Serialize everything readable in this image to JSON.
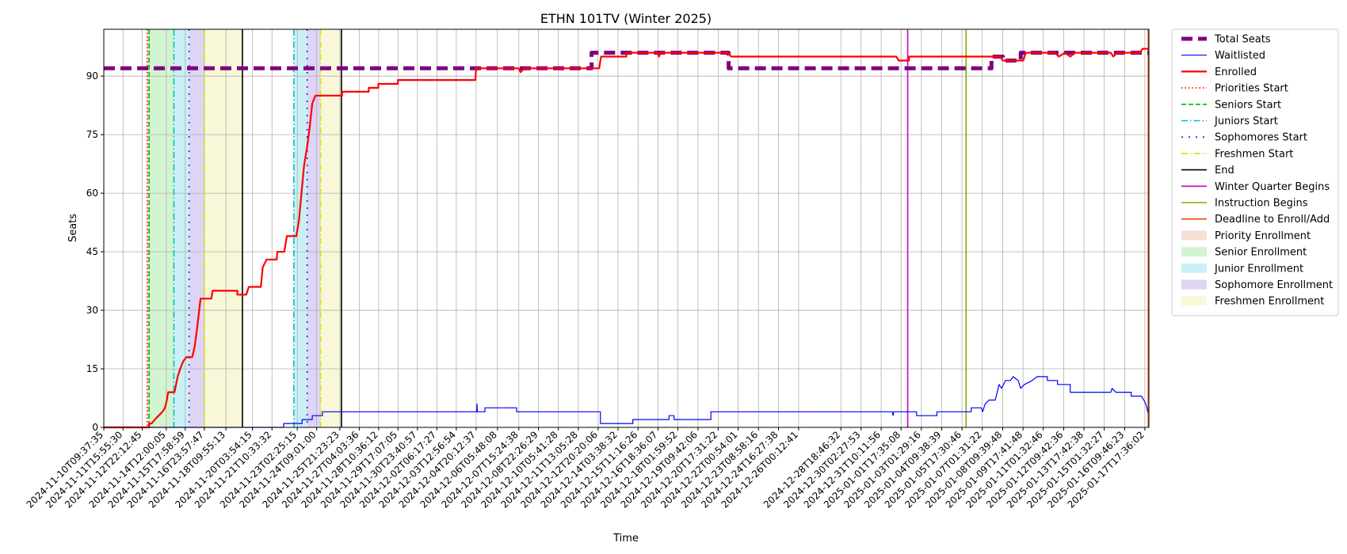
{
  "chart_data": {
    "type": "line",
    "title": "ETHN 101TV (Winter 2025)",
    "xlabel": "Time",
    "ylabel": "Seats",
    "ylim": [
      0,
      102
    ],
    "yticks": [
      0,
      15,
      30,
      45,
      60,
      75,
      90
    ],
    "grid": true,
    "legend_position": "outside-right",
    "x_start": "2024-11-10T09:37:35",
    "x_end": "2025-01-18T00:00:00",
    "xticks": [
      "2024-11-10T09:37:35",
      "2024-11-11T15:55:30",
      "2024-11-12T22:12:45",
      "2024-11-14T12:00:05",
      "2024-11-15T17:58:59",
      "2024-11-16T23:57:47",
      "2024-11-18T09:55:13",
      "2024-11-20T03:54:15",
      "2024-11-21T10:33:32",
      "2024-11-23T02:25:15",
      "2024-11-24T09:01:00",
      "2024-11-25T21:23:23",
      "2024-11-27T04:03:36",
      "2024-11-28T10:36:12",
      "2024-11-29T17:07:05",
      "2024-11-30T23:40:57",
      "2024-12-02T06:17:27",
      "2024-12-03T12:56:54",
      "2024-12-04T20:12:37",
      "2024-12-06T05:48:08",
      "2024-12-07T15:24:38",
      "2024-12-08T22:26:29",
      "2024-12-10T05:41:28",
      "2024-12-11T13:05:28",
      "2024-12-12T20:20:06",
      "2024-12-14T03:38:32",
      "2024-12-15T11:16:26",
      "2024-12-16T18:36:07",
      "2024-12-18T01:59:52",
      "2024-12-19T09:42:06",
      "2024-12-20T17:31:22",
      "2024-12-22T00:54:01",
      "2024-12-23T08:58:16",
      "2024-12-24T16:27:38",
      "2024-12-26T00:12:41",
      "2024-12-28T18:46:32",
      "2024-12-30T02:27:53",
      "2024-12-31T10:11:56",
      "2025-01-01T17:35:08",
      "2025-01-03T01:29:16",
      "2025-01-04T09:38:39",
      "2025-01-05T17:30:46",
      "2025-01-07T01:31:22",
      "2025-01-08T09:39:48",
      "2025-01-09T17:41:48",
      "2025-01-11T01:32:46",
      "2025-01-12T09:42:36",
      "2025-01-13T17:42:38",
      "2025-01-15T01:32:27",
      "2025-01-16T09:46:23",
      "2025-01-17T17:36:02"
    ],
    "series": [
      {
        "name": "Total Seats",
        "color": "#800080",
        "style": "dashed-thick",
        "points": [
          [
            "2024-11-10T09:37:35",
            92
          ],
          [
            "2024-12-12T10:00:00",
            92
          ],
          [
            "2024-12-12T10:00:00",
            96
          ],
          [
            "2024-12-21T10:00:00",
            96
          ],
          [
            "2024-12-21T10:00:00",
            92
          ],
          [
            "2025-01-07T16:00:00",
            92
          ],
          [
            "2025-01-07T16:00:00",
            95
          ],
          [
            "2025-01-08T10:00:00",
            95
          ],
          [
            "2025-01-08T10:00:00",
            94
          ],
          [
            "2025-01-09T14:00:00",
            94
          ],
          [
            "2025-01-09T14:00:00",
            96
          ],
          [
            "2025-01-18T00:00:00",
            96
          ]
        ]
      },
      {
        "name": "Waitlisted",
        "color": "#0000ff",
        "style": "solid-thin",
        "points": [
          [
            "2024-11-10T09:37:35",
            0
          ],
          [
            "2024-11-22T05:00:00",
            0
          ],
          [
            "2024-11-22T05:00:00",
            1
          ],
          [
            "2024-11-23T10:00:00",
            1
          ],
          [
            "2024-11-23T10:00:00",
            2
          ],
          [
            "2024-11-24T02:00:00",
            2
          ],
          [
            "2024-11-24T02:00:00",
            3
          ],
          [
            "2024-11-24T18:00:00",
            3
          ],
          [
            "2024-11-24T18:00:00",
            4
          ],
          [
            "2024-12-04T21:00:00",
            4
          ],
          [
            "2024-12-04T21:30:00",
            6
          ],
          [
            "2024-12-04T22:00:00",
            4
          ],
          [
            "2024-12-05T10:00:00",
            4
          ],
          [
            "2024-12-05T10:00:00",
            5
          ],
          [
            "2024-12-07T12:00:00",
            5
          ],
          [
            "2024-12-07T12:00:00",
            4
          ],
          [
            "2024-12-13T00:00:00",
            4
          ],
          [
            "2024-12-13T00:00:00",
            1
          ],
          [
            "2024-12-15T03:00:00",
            1
          ],
          [
            "2024-12-15T03:00:00",
            2
          ],
          [
            "2024-12-17T12:00:00",
            2
          ],
          [
            "2024-12-17T12:00:00",
            3
          ],
          [
            "2024-12-17T20:00:00",
            3
          ],
          [
            "2024-12-17T20:00:00",
            2
          ],
          [
            "2024-12-20T06:00:00",
            2
          ],
          [
            "2024-12-20T06:00:00",
            4
          ],
          [
            "2025-01-01T04:00:00",
            4
          ],
          [
            "2025-01-01T05:00:00",
            3
          ],
          [
            "2025-01-01T06:00:00",
            4
          ],
          [
            "2025-01-02T18:00:00",
            4
          ],
          [
            "2025-01-02T18:00:00",
            3
          ],
          [
            "2025-01-04T02:00:00",
            3
          ],
          [
            "2025-01-04T02:00:00",
            4
          ],
          [
            "2025-01-06T08:00:00",
            4
          ],
          [
            "2025-01-06T08:00:00",
            5
          ],
          [
            "2025-01-07T00:00:00",
            5
          ],
          [
            "2025-01-07T02:00:00",
            4
          ],
          [
            "2025-01-07T06:00:00",
            6
          ],
          [
            "2025-01-07T12:00:00",
            7
          ],
          [
            "2025-01-07T22:00:00",
            7
          ],
          [
            "2025-01-08T04:00:00",
            11
          ],
          [
            "2025-01-08T08:00:00",
            10
          ],
          [
            "2025-01-08T14:00:00",
            12
          ],
          [
            "2025-01-08T22:00:00",
            12
          ],
          [
            "2025-01-09T02:00:00",
            13
          ],
          [
            "2025-01-09T10:00:00",
            12
          ],
          [
            "2025-01-09T14:00:00",
            10
          ],
          [
            "2025-01-09T20:00:00",
            11
          ],
          [
            "2025-01-10T08:00:00",
            12
          ],
          [
            "2025-01-10T16:00:00",
            13
          ],
          [
            "2025-01-11T08:00:00",
            13
          ],
          [
            "2025-01-11T08:00:00",
            12
          ],
          [
            "2025-01-12T00:00:00",
            12
          ],
          [
            "2025-01-12T00:00:00",
            11
          ],
          [
            "2025-01-12T20:00:00",
            11
          ],
          [
            "2025-01-12T20:00:00",
            9
          ],
          [
            "2025-01-15T12:00:00",
            9
          ],
          [
            "2025-01-15T14:00:00",
            10
          ],
          [
            "2025-01-15T20:00:00",
            9
          ],
          [
            "2025-01-16T20:00:00",
            9
          ],
          [
            "2025-01-16T20:00:00",
            8
          ],
          [
            "2025-01-17T12:00:00",
            8
          ],
          [
            "2025-01-17T16:00:00",
            7
          ],
          [
            "2025-01-17T19:00:00",
            6
          ],
          [
            "2025-01-17T21:00:00",
            5
          ],
          [
            "2025-01-17T22:00:00",
            4
          ],
          [
            "2025-01-18T00:00:00",
            4
          ]
        ]
      },
      {
        "name": "Enrolled",
        "color": "#ff0000",
        "style": "solid-thick",
        "points": [
          [
            "2024-11-10T09:37:35",
            0
          ],
          [
            "2024-11-13T09:00:00",
            0
          ],
          [
            "2024-11-13T09:00:00",
            1
          ],
          [
            "2024-11-13T13:00:00",
            1
          ],
          [
            "2024-11-13T18:00:00",
            2
          ],
          [
            "2024-11-14T00:00:00",
            3
          ],
          [
            "2024-11-14T06:00:00",
            4
          ],
          [
            "2024-11-14T10:00:00",
            5
          ],
          [
            "2024-11-14T13:00:00",
            7
          ],
          [
            "2024-11-14T15:00:00",
            9
          ],
          [
            "2024-11-15T01:00:00",
            9
          ],
          [
            "2024-11-15T06:00:00",
            13
          ],
          [
            "2024-11-15T10:00:00",
            15
          ],
          [
            "2024-11-15T15:00:00",
            17
          ],
          [
            "2024-11-15T20:00:00",
            18
          ],
          [
            "2024-11-16T05:00:00",
            18
          ],
          [
            "2024-11-16T09:00:00",
            21
          ],
          [
            "2024-11-16T13:00:00",
            26
          ],
          [
            "2024-11-16T18:00:00",
            33
          ],
          [
            "2024-11-17T11:00:00",
            33
          ],
          [
            "2024-11-17T13:00:00",
            35
          ],
          [
            "2024-11-19T04:00:00",
            35
          ],
          [
            "2024-11-19T04:00:00",
            34
          ],
          [
            "2024-11-19T18:00:00",
            34
          ],
          [
            "2024-11-19T22:00:00",
            36
          ],
          [
            "2024-11-20T17:00:00",
            36
          ],
          [
            "2024-11-20T20:00:00",
            41
          ],
          [
            "2024-11-21T02:00:00",
            43
          ],
          [
            "2024-11-21T18:00:00",
            43
          ],
          [
            "2024-11-21T19:00:00",
            45
          ],
          [
            "2024-11-22T06:00:00",
            45
          ],
          [
            "2024-11-22T10:00:00",
            49
          ],
          [
            "2024-11-23T01:00:00",
            49
          ],
          [
            "2024-11-23T05:00:00",
            53
          ],
          [
            "2024-11-23T09:00:00",
            60
          ],
          [
            "2024-11-23T13:00:00",
            67
          ],
          [
            "2024-11-23T18:00:00",
            72
          ],
          [
            "2024-11-23T22:00:00",
            77
          ],
          [
            "2024-11-24T02:00:00",
            83
          ],
          [
            "2024-11-24T07:00:00",
            85
          ],
          [
            "2024-11-26T01:00:00",
            85
          ],
          [
            "2024-11-26T01:00:00",
            86
          ],
          [
            "2024-11-27T19:00:00",
            86
          ],
          [
            "2024-11-27T19:00:00",
            87
          ],
          [
            "2024-11-28T10:00:00",
            87
          ],
          [
            "2024-11-28T10:00:00",
            88
          ],
          [
            "2024-11-29T17:00:00",
            88
          ],
          [
            "2024-11-29T17:00:00",
            89
          ],
          [
            "2024-12-04T19:00:00",
            89
          ],
          [
            "2024-12-04T20:12:37",
            92
          ],
          [
            "2024-12-07T15:00:00",
            92
          ],
          [
            "2024-12-07T18:00:00",
            91
          ],
          [
            "2024-12-08T00:00:00",
            92
          ],
          [
            "2024-12-12T22:00:00",
            92
          ],
          [
            "2024-12-13T01:00:00",
            95
          ],
          [
            "2024-12-14T17:00:00",
            95
          ],
          [
            "2024-12-14T17:00:00",
            96
          ],
          [
            "2024-12-16T18:00:00",
            96
          ],
          [
            "2024-12-16T20:00:00",
            95
          ],
          [
            "2024-12-16T23:00:00",
            96
          ],
          [
            "2024-12-21T08:00:00",
            96
          ],
          [
            "2024-12-21T14:00:00",
            95
          ],
          [
            "2025-01-01T10:00:00",
            95
          ],
          [
            "2025-01-01T14:00:00",
            94
          ],
          [
            "2025-01-02T06:00:00",
            94
          ],
          [
            "2025-01-02T06:00:00",
            95
          ],
          [
            "2025-01-08T06:00:00",
            95
          ],
          [
            "2025-01-08T10:00:00",
            94
          ],
          [
            "2025-01-09T18:00:00",
            94
          ],
          [
            "2025-01-09T22:00:00",
            96
          ],
          [
            "2025-01-11T20:00:00",
            96
          ],
          [
            "2025-01-12T02:00:00",
            95
          ],
          [
            "2025-01-12T12:00:00",
            96
          ],
          [
            "2025-01-12T20:00:00",
            95
          ],
          [
            "2025-01-13T04:00:00",
            96
          ],
          [
            "2025-01-15T12:00:00",
            96
          ],
          [
            "2025-01-15T16:00:00",
            95
          ],
          [
            "2025-01-15T22:00:00",
            96
          ],
          [
            "2025-01-17T10:00:00",
            96
          ],
          [
            "2025-01-17T14:00:00",
            97
          ],
          [
            "2025-01-18T00:00:00",
            97
          ]
        ]
      }
    ],
    "vlines": [
      {
        "name": "Priorities Start",
        "color": "#ff0000",
        "style": "dotted",
        "times": [
          "2024-11-13T06:00:00"
        ]
      },
      {
        "name": "Seniors Start",
        "color": "#00bb00",
        "style": "dashed",
        "times": [
          "2024-11-13T09:00:00"
        ]
      },
      {
        "name": "Juniors Start",
        "color": "#00bfbf",
        "style": "dashdot",
        "times": [
          "2024-11-15T00:00:00",
          "2024-11-22T21:00:00"
        ]
      },
      {
        "name": "Sophomores Start",
        "color": "#5500cc",
        "style": "loosedash",
        "times": [
          "2024-11-16T00:00:00",
          "2024-11-23T18:00:00"
        ]
      },
      {
        "name": "Freshmen Start",
        "color": "#dddd00",
        "style": "dashdot",
        "times": [
          "2024-11-17T00:00:00",
          "2024-11-24T15:00:00"
        ]
      },
      {
        "name": "End",
        "color": "#000000",
        "style": "solid",
        "times": [
          "2024-11-19T12:00:00",
          "2024-11-26T00:00:00"
        ]
      },
      {
        "name": "Winter Quarter Begins",
        "color": "#cc00cc",
        "style": "solid",
        "times": [
          "2025-01-02T04:00:00"
        ]
      },
      {
        "name": "Instruction Begins",
        "color": "#88aa00",
        "style": "solid",
        "times": [
          "2025-01-06T00:00:00"
        ]
      },
      {
        "name": "Deadline to Enroll/Add",
        "color": "#ee4400",
        "style": "solid",
        "times": [
          "2025-01-17T23:00:00"
        ]
      }
    ],
    "bands": [
      {
        "name": "Priority Enrollment",
        "color": "#f4c8b8",
        "ranges": [
          [
            "2024-11-13T06:00:00",
            "2024-11-13T09:00:00"
          ]
        ]
      },
      {
        "name": "Senior Enrollment",
        "color": "#b6ecb0",
        "ranges": [
          [
            "2024-11-13T09:00:00",
            "2024-11-15T00:00:00"
          ]
        ]
      },
      {
        "name": "Junior Enrollment",
        "color": "#a6e6ee",
        "ranges": [
          [
            "2024-11-15T00:00:00",
            "2024-11-16T00:00:00"
          ],
          [
            "2024-11-22T21:00:00",
            "2024-11-23T18:00:00"
          ]
        ]
      },
      {
        "name": "Sophomore Enrollment",
        "color": "#c8b8ee",
        "ranges": [
          [
            "2024-11-16T00:00:00",
            "2024-11-17T00:00:00"
          ],
          [
            "2024-11-23T18:00:00",
            "2024-11-24T15:00:00"
          ]
        ]
      },
      {
        "name": "Freshmen Enrollment",
        "color": "#f4f4c0",
        "ranges": [
          [
            "2024-11-17T00:00:00",
            "2024-11-19T12:00:00"
          ],
          [
            "2024-11-24T15:00:00",
            "2024-11-26T00:00:00"
          ]
        ]
      }
    ]
  }
}
